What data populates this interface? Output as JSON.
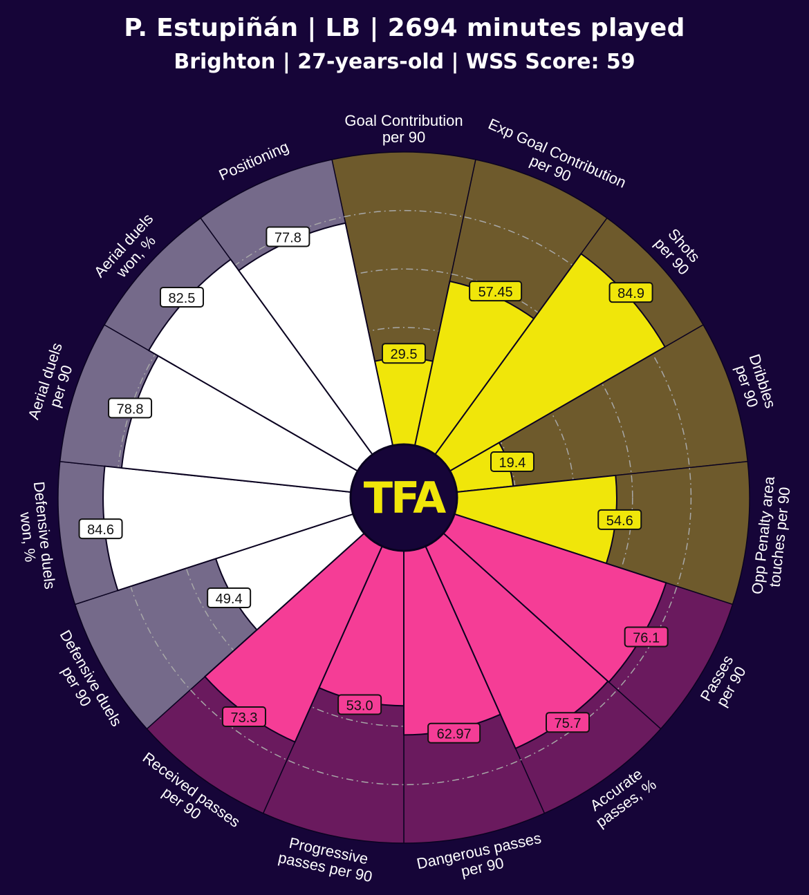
{
  "header": {
    "title": "P. Estupiñán | LB | 2694 minutes played",
    "subtitle": "Brighton | 27-years-old | WSS Score: 59"
  },
  "logo_text": "TFA",
  "colors": {
    "background": "#160538",
    "attacking": "#f0e60a",
    "attacking_bg": "#6e5a2c",
    "possession": "#f53d96",
    "possession_bg": "#6a1a5e",
    "defending": "#ffffff",
    "defending_bg": "#756a8a",
    "logo": "#f0e60a"
  },
  "chart_data": {
    "type": "pizza",
    "range": [
      0,
      100
    ],
    "grid": [
      20,
      40,
      60,
      80
    ],
    "categories": [
      {
        "label": "Goal Contribution\nper 90",
        "value": 29.5,
        "display": "29.5",
        "group": "attacking"
      },
      {
        "label": "Exp Goal Contribution\nper 90",
        "value": 57.45,
        "display": "57.45",
        "group": "attacking"
      },
      {
        "label": "Shots\nper 90",
        "value": 84.9,
        "display": "84.9",
        "group": "attacking"
      },
      {
        "label": "Dribbles\nper 90",
        "value": 19.4,
        "display": "19.4",
        "group": "attacking"
      },
      {
        "label": "Opp Penalty area\ntouches per 90",
        "value": 54.6,
        "display": "54.6",
        "group": "attacking"
      },
      {
        "label": "Passes\nper 90",
        "value": 76.1,
        "display": "76.1",
        "group": "possession"
      },
      {
        "label": "Accurate\npasses, %",
        "value": 75.7,
        "display": "75.7",
        "group": "possession"
      },
      {
        "label": "Dangerous passes\nper 90",
        "value": 62.97,
        "display": "62.97",
        "group": "possession"
      },
      {
        "label": "Progressive\npasses per 90",
        "value": 53.0,
        "display": "53.0",
        "group": "possession"
      },
      {
        "label": "Received passes\nper 90",
        "value": 73.3,
        "display": "73.3",
        "group": "possession"
      },
      {
        "label": "Defensive duels\nper 90",
        "value": 49.4,
        "display": "49.4",
        "group": "defending"
      },
      {
        "label": "Defensive duels\nwon, %",
        "value": 84.6,
        "display": "84.6",
        "group": "defending"
      },
      {
        "label": "Aerial duels\nper 90",
        "value": 78.8,
        "display": "78.8",
        "group": "defending"
      },
      {
        "label": "Aerial duels\nwon, %",
        "value": 82.5,
        "display": "82.5",
        "group": "defending"
      },
      {
        "label": "Positioning",
        "value": 77.8,
        "display": "77.8",
        "group": "defending"
      }
    ]
  }
}
